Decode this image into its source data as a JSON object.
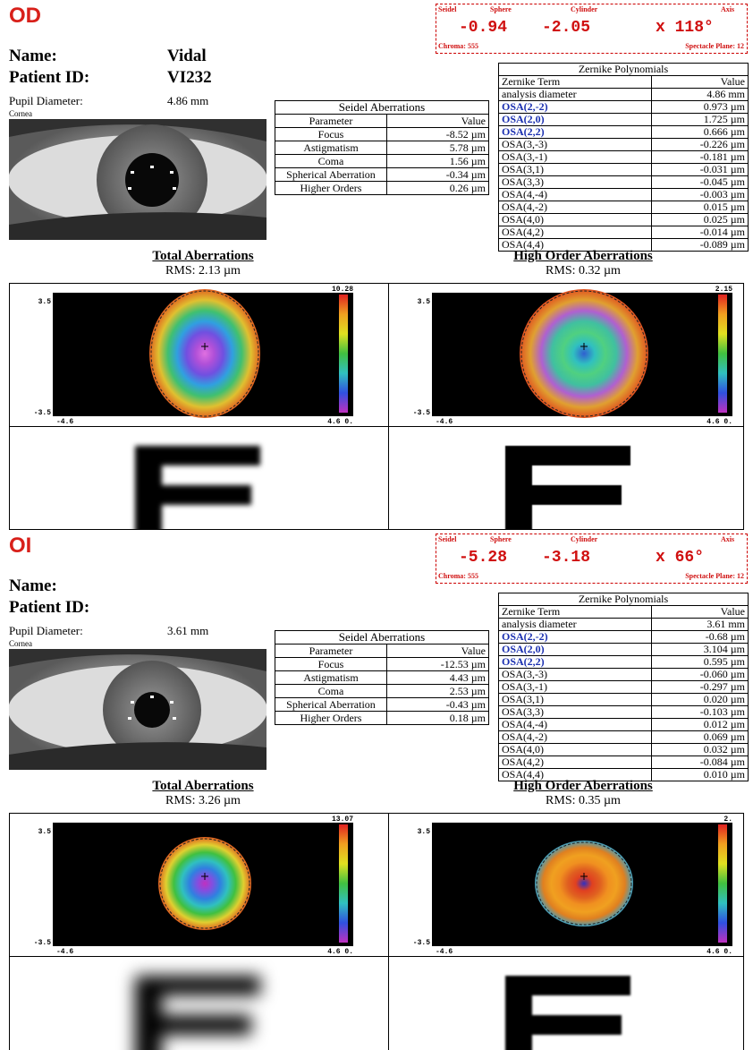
{
  "sections": [
    {
      "eye": "OD",
      "refraction": {
        "labels": [
          "Seidel",
          "Sphere",
          "Cylinder",
          "Axis"
        ],
        "values": [
          "-0.94",
          "-2.05",
          "x 118°"
        ],
        "chroma": "Chroma: 555",
        "plane": "Spectacle Plane: 12"
      },
      "patient": {
        "name_label": "Name:",
        "name": "Vidal",
        "id_label": "Patient ID:",
        "id": "VI232",
        "pupil_label": "Pupil Diameter:",
        "pupil": "4.86 mm",
        "photo_label": "Cornea"
      },
      "seidel": {
        "title": "Seidel Aberrations",
        "header": [
          "Parameter",
          "Value"
        ],
        "rows": [
          [
            "Focus",
            "-8.52 µm"
          ],
          [
            "Astigmatism",
            "5.78 µm"
          ],
          [
            "Coma",
            "1.56 µm"
          ],
          [
            "Spherical Aberration",
            "-0.34 µm"
          ],
          [
            "Higher Orders",
            "0.26 µm"
          ]
        ]
      },
      "zernike": {
        "title": "Zernike Polynomials",
        "header": [
          "Zernike Term",
          "Value"
        ],
        "rows": [
          [
            "analysis diameter",
            "4.86 mm"
          ],
          [
            "OSA(2,-2)",
            "0.973 µm"
          ],
          [
            "OSA(2,0)",
            "1.725 µm"
          ],
          [
            "OSA(2,2)",
            "0.666 µm"
          ],
          [
            "OSA(3,-3)",
            "-0.226 µm"
          ],
          [
            "OSA(3,-1)",
            "-0.181 µm"
          ],
          [
            "OSA(3,1)",
            "-0.031 µm"
          ],
          [
            "OSA(3,3)",
            "-0.045 µm"
          ],
          [
            "OSA(4,-4)",
            "-0.003 µm"
          ],
          [
            "OSA(4,-2)",
            "0.015 µm"
          ],
          [
            "OSA(4,0)",
            "0.025 µm"
          ],
          [
            "OSA(4,2)",
            "-0.014 µm"
          ],
          [
            "OSA(4,4)",
            "-0.089 µm"
          ]
        ]
      },
      "maps": [
        {
          "title": "Total Aberrations",
          "rms": "RMS: 2.13 µm",
          "y_top": "3.5",
          "y_bottom": "-3.5",
          "x_left": "-4.6",
          "x_right": "4.6 0.",
          "scale_max": "10.28"
        },
        {
          "title": "High Order Aberrations",
          "rms": "RMS: 0.32 µm",
          "y_top": "3.5",
          "y_bottom": "-3.5",
          "x_left": "-4.6",
          "x_right": "4.6 0.",
          "scale_max": "2.15"
        }
      ]
    },
    {
      "eye": "OI",
      "refraction": {
        "labels": [
          "Seidel",
          "Sphere",
          "Cylinder",
          "Axis"
        ],
        "values": [
          "-5.28",
          "-3.18",
          "x 66°"
        ],
        "chroma": "Chroma: 555",
        "plane": "Spectacle Plane: 12"
      },
      "patient": {
        "name_label": "Name:",
        "id_label": "Patient ID:",
        "pupil_label": "Pupil Diameter:",
        "pupil": "3.61 mm",
        "photo_label": "Cornea"
      },
      "seidel": {
        "title": "Seidel Aberrations",
        "header": [
          "Parameter",
          "Value"
        ],
        "rows": [
          [
            "Focus",
            "-12.53 µm"
          ],
          [
            "Astigmatism",
            "4.43 µm"
          ],
          [
            "Coma",
            "2.53 µm"
          ],
          [
            "Spherical Aberration",
            "-0.43 µm"
          ],
          [
            "Higher Orders",
            "0.18 µm"
          ]
        ]
      },
      "zernike": {
        "title": "Zernike Polynomials",
        "header": [
          "Zernike Term",
          "Value"
        ],
        "rows": [
          [
            "analysis diameter",
            "3.61 mm"
          ],
          [
            "OSA(2,-2)",
            "-0.68 µm"
          ],
          [
            "OSA(2,0)",
            "3.104 µm"
          ],
          [
            "OSA(2,2)",
            "0.595 µm"
          ],
          [
            "OSA(3,-3)",
            "-0.060 µm"
          ],
          [
            "OSA(3,-1)",
            "-0.297 µm"
          ],
          [
            "OSA(3,1)",
            "0.020 µm"
          ],
          [
            "OSA(3,3)",
            "-0.103 µm"
          ],
          [
            "OSA(4,-4)",
            "0.012 µm"
          ],
          [
            "OSA(4,-2)",
            "0.069 µm"
          ],
          [
            "OSA(4,0)",
            "0.032 µm"
          ],
          [
            "OSA(4,2)",
            "-0.084 µm"
          ],
          [
            "OSA(4,4)",
            "0.010 µm"
          ]
        ]
      },
      "maps": [
        {
          "title": "Total Aberrations",
          "rms": "RMS: 3.26 µm",
          "y_top": "3.5",
          "y_bottom": "-3.5",
          "x_left": "-4.6",
          "x_right": "4.6 0.",
          "scale_max": "13.07"
        },
        {
          "title": "High Order Aberrations",
          "rms": "RMS: 0.35 µm",
          "y_top": "3.5",
          "y_bottom": "-3.5",
          "x_left": "-4.6",
          "x_right": "4.6 0.",
          "scale_max": "2."
        }
      ]
    }
  ]
}
